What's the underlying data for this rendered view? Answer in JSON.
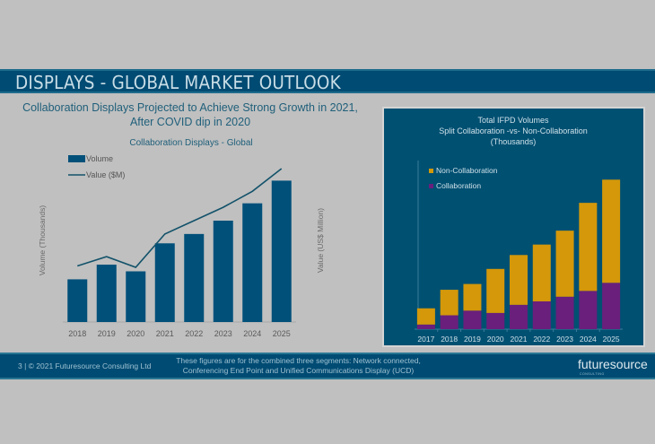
{
  "slide": {
    "title": "DISPLAYS - GLOBAL MARKET OUTLOOK",
    "subtitle": "Collaboration Displays Projected to Achieve Strong Growth in 2021, After COVID dip in 2020"
  },
  "footer": {
    "page_credit": "3 | © 2021 Futuresource Consulting Ltd",
    "note": "These figures are for the combined three segments: Network connected, Conferencing End Point and Unified Communications Display (UCD)",
    "logo_text": "futuresource",
    "logo_subtext": "CONSULTING"
  },
  "colors": {
    "navy": "#004b73",
    "bar": "#00507a",
    "line": "#12526a",
    "non_collab": "#d4980a",
    "collab": "#6a1f7c"
  },
  "chart_data": [
    {
      "type": "bar",
      "title": "Collaboration Displays - Global",
      "categories": [
        "2018",
        "2019",
        "2020",
        "2021",
        "2022",
        "2023",
        "2024",
        "2025"
      ],
      "ylabel": "Volume (Thousands)",
      "y2label": "Value  (US$ Million)",
      "legend": [
        "Volume",
        "Value ($M)"
      ],
      "legend_position": "top-left",
      "series": [
        {
          "name": "Volume",
          "kind": "bar",
          "values": [
            32,
            43,
            38,
            59,
            66,
            76,
            89,
            106
          ]
        },
        {
          "name": "Value ($M)",
          "kind": "line",
          "values": [
            42,
            49,
            41,
            66,
            76,
            86,
            98,
            115
          ]
        }
      ],
      "ylim": [
        0,
        115
      ],
      "grid": false
    },
    {
      "type": "bar",
      "stacked": true,
      "title": "Total IFPD Volumes\nSplit Collaboration -vs-  Non-Collaboration\n(Thousands)",
      "title_lines": [
        "Total IFPD Volumes",
        "Split Collaboration -vs-  Non-Collaboration",
        "(Thousands)"
      ],
      "categories": [
        "2017",
        "2018",
        "2019",
        "2020",
        "2021",
        "2022",
        "2023",
        "2024",
        "2025"
      ],
      "legend": [
        "Non-Collaboration",
        "Collaboration"
      ],
      "legend_position": "top-left",
      "series": [
        {
          "name": "Collaboration",
          "values": [
            4,
            12,
            16,
            14,
            21,
            24,
            28,
            33,
            40
          ]
        },
        {
          "name": "Non-Collaboration",
          "values": [
            14,
            22,
            23,
            38,
            43,
            49,
            57,
            76,
            89
          ]
        }
      ],
      "ylim": [
        0,
        130
      ],
      "grid": false
    }
  ]
}
